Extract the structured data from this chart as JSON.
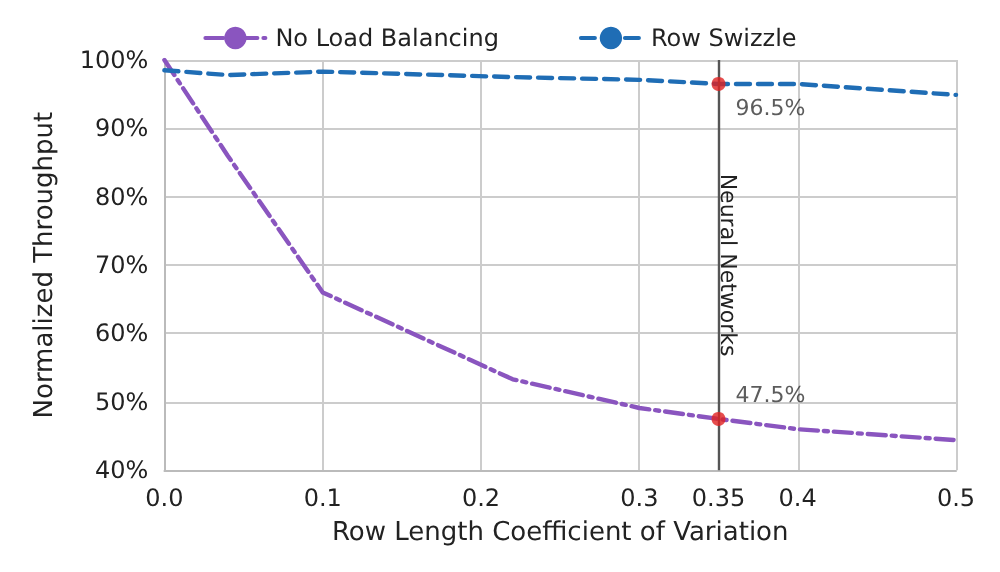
{
  "chart_data": {
    "type": "line",
    "xlabel": "Row Length Coefficient of Variation",
    "ylabel": "Normalized Throughput",
    "xlim": [
      0,
      0.5
    ],
    "xticks": [
      {
        "value": 0,
        "label": "0.0"
      },
      0.1,
      0.2,
      0.3,
      0.35,
      0.4,
      0.5
    ],
    "ylim": [
      40,
      100
    ],
    "yticks": [
      {
        "value": 40,
        "label": "40%"
      },
      {
        "value": 50,
        "label": "50%"
      },
      {
        "value": 60,
        "label": "60%"
      },
      {
        "value": 70,
        "label": "70%"
      },
      {
        "value": 80,
        "label": "80%"
      },
      {
        "value": 90,
        "label": "90%"
      },
      {
        "value": 100,
        "label": "100%"
      }
    ],
    "grid": true,
    "legend": "top",
    "marker": "none",
    "series": [
      {
        "name": "No Load Balancing",
        "color": "#8a55bf",
        "line_style": "dashdot",
        "x": [
          0,
          0.04,
          0.1,
          0.22,
          0.3,
          0.35,
          0.4,
          0.5
        ],
        "values": [
          100,
          86,
          66,
          53.3,
          49.1,
          47.5,
          46,
          44.4
        ]
      },
      {
        "name": "Row Swizzle",
        "color": "#1f6db5",
        "line_style": "dashed",
        "x": [
          0,
          0.04,
          0.1,
          0.22,
          0.3,
          0.35,
          0.4,
          0.5
        ],
        "values": [
          98.5,
          97.8,
          98.3,
          97.5,
          97.1,
          96.5,
          96.5,
          94.9
        ]
      },
      {
        "type": "scatter",
        "color": "#e02020",
        "marker": "circle",
        "x": [
          0.35,
          0.35
        ],
        "values": [
          96.5,
          47.5
        ],
        "value_labels": [
          "96.5%",
          "47.5%"
        ]
      }
    ],
    "ref_lines": [
      {
        "axis": "x",
        "value": 0.35,
        "label": "Neural Networks",
        "color": "#555555"
      }
    ]
  }
}
